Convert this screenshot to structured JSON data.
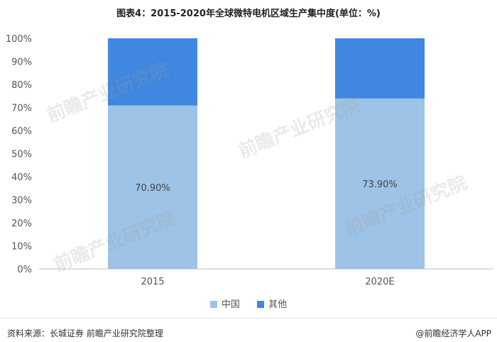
{
  "title": "图表4：2015-2020年全球微特电机区域生产集中度(单位：%)",
  "chart_data": {
    "type": "bar",
    "stacked": true,
    "categories": [
      "2015",
      "2020E"
    ],
    "series": [
      {
        "name": "中国",
        "values": [
          70.9,
          73.9
        ],
        "color": "#9dc3e6",
        "labels": [
          "70.90%",
          "73.90%"
        ]
      },
      {
        "name": "其他",
        "values": [
          29.1,
          26.1
        ],
        "color": "#3f87e0",
        "labels": [
          "",
          ""
        ]
      }
    ],
    "ylim": [
      0,
      100
    ],
    "yticks": [
      "0%",
      "10%",
      "20%",
      "30%",
      "40%",
      "50%",
      "60%",
      "70%",
      "80%",
      "90%",
      "100%"
    ],
    "legend_position": "bottom"
  },
  "watermark_text": "前瞻产业研究院",
  "footer": {
    "source": "资料来源：长城证券 前瞻产业研究院整理",
    "brand": "@前瞻经济学人APP"
  }
}
